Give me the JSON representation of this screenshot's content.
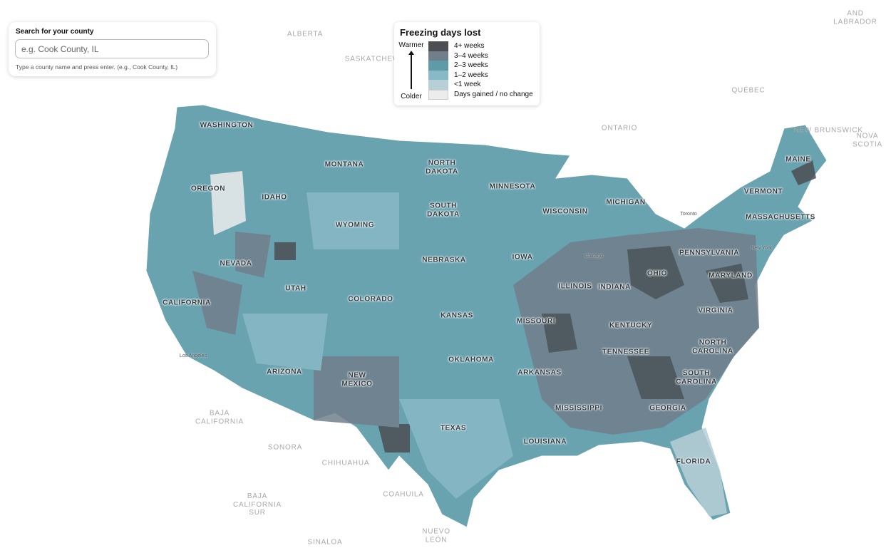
{
  "search": {
    "label": "Search for your county",
    "placeholder": "e.g. Cook County, IL",
    "hint": "Type a county name and press enter. (e.g., Cook County, IL)"
  },
  "legend": {
    "title": "Freezing days lost",
    "warmer": "Warmer",
    "colder": "Colder",
    "items": [
      {
        "label": "4+ weeks",
        "color": "#4b4f53"
      },
      {
        "label": "3–4 weeks",
        "color": "#717f8b"
      },
      {
        "label": "2–3 weeks",
        "color": "#5f9aa9"
      },
      {
        "label": "1–2 weeks",
        "color": "#88b9c6"
      },
      {
        "label": "<1 week",
        "color": "#b7cfd6"
      },
      {
        "label": "Days gained / no change",
        "color": "#ececec"
      }
    ]
  },
  "map": {
    "state_labels": [
      "WASHINGTON",
      "OREGON",
      "IDAHO",
      "MONTANA",
      "WYOMING",
      "NEVADA",
      "UTAH",
      "CALIFORNIA",
      "ARIZONA",
      "COLORADO",
      "NEW MEXICO",
      "NORTH DAKOTA",
      "SOUTH DAKOTA",
      "NEBRASKA",
      "KANSAS",
      "OKLAHOMA",
      "TEXAS",
      "MINNESOTA",
      "IOWA",
      "MISSOURI",
      "ARKANSAS",
      "LOUISIANA",
      "WISCONSIN",
      "ILLINOIS",
      "MICHIGAN",
      "INDIANA",
      "OHIO",
      "KENTUCKY",
      "TENNESSEE",
      "MISSISSIPPI",
      "GEORGIA",
      "FLORIDA",
      "SOUTH CAROLINA",
      "NORTH CAROLINA",
      "VIRGINIA",
      "MARYLAND",
      "PENNSYLVANIA",
      "VERMONT",
      "MAINE",
      "MASSACHUSETTS"
    ],
    "region_labels": [
      "ALBERTA",
      "SASKATCHEWAN",
      "ONTARIO",
      "QUÉBEC",
      "AND LABRADOR",
      "NEW BRUNSWICK",
      "NOVA SCOTIA",
      "BAJA CALIFORNIA",
      "SONORA",
      "CHIHUAHUA",
      "COAHUILA",
      "BAJA CALIFORNIA SUR",
      "NUEVO LEÓN",
      "SINALOA"
    ],
    "city_labels": [
      "Toronto",
      "Chicago",
      "Los Angeles",
      "New York"
    ]
  }
}
